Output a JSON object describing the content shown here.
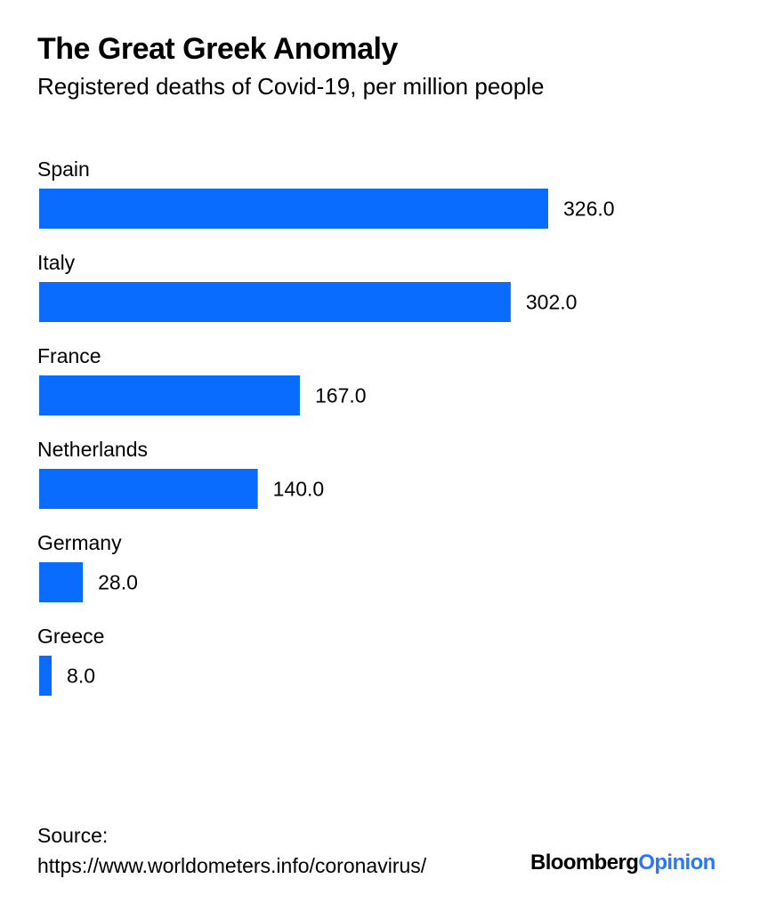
{
  "header": {
    "title": "The Great Greek Anomaly",
    "subtitle": "Registered deaths of Covid-19, per million people"
  },
  "chart_data": {
    "type": "bar",
    "orientation": "horizontal",
    "title": "The Great Greek Anomaly",
    "subtitle": "Registered deaths of Covid-19, per million people",
    "categories": [
      "Spain",
      "Italy",
      "France",
      "Netherlands",
      "Germany",
      "Greece"
    ],
    "values": [
      326.0,
      302.0,
      167.0,
      140.0,
      28.0,
      8.0
    ],
    "value_labels": [
      "326.0",
      "302.0",
      "167.0",
      "140.0",
      "28.0",
      "8.0"
    ],
    "xlabel": "",
    "ylabel": "",
    "xlim": [
      0,
      326
    ],
    "grid": false,
    "bar_color": "#0a6bff"
  },
  "footer": {
    "source_label": "Source:",
    "source_url": "https://www.worldometers.info/coronavirus/",
    "brand_part1": "Bloomberg",
    "brand_part2": "Opinion",
    "brand_color": "#2676ff"
  }
}
